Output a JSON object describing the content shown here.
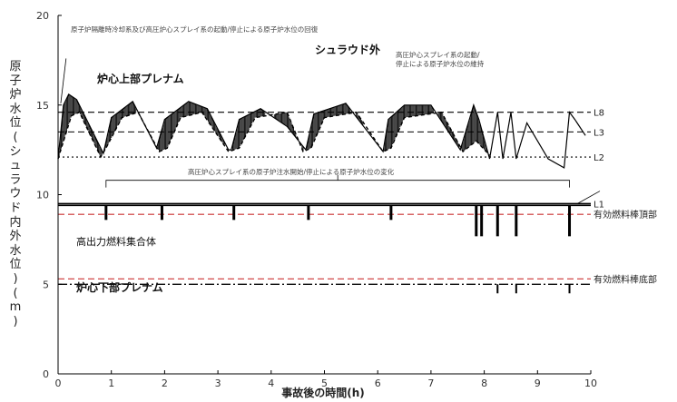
{
  "chart_data": {
    "type": "line",
    "xlabel": "事故後の時間(h)",
    "ylabel": "原子炉水位(シュラウド内外水位)(m)",
    "xlim": [
      0,
      10
    ],
    "ylim": [
      0,
      20
    ],
    "xticks": [
      0,
      1,
      2,
      3,
      4,
      5,
      6,
      7,
      8,
      9,
      10
    ],
    "yticks": [
      0,
      5,
      10,
      15,
      20
    ],
    "grid": false,
    "reference_lines": [
      {
        "label": "L8",
        "y": 14.6,
        "style": "dashed",
        "color": "#000000"
      },
      {
        "label": "L3",
        "y": 13.5,
        "style": "dashed",
        "color": "#000000"
      },
      {
        "label": "L2",
        "y": 12.1,
        "style": "dotted",
        "color": "#000000"
      },
      {
        "label": "L1",
        "y": 9.5,
        "style": "solid",
        "color": "#000000"
      },
      {
        "label": "有効燃料棒頂部",
        "y": 8.9,
        "style": "dashed",
        "color": "#cc3333"
      },
      {
        "label": "有効燃料棒底部",
        "y": 5.3,
        "style": "dashed",
        "color": "#cc3333"
      },
      {
        "label": "",
        "y": 5.0,
        "style": "dashdot",
        "color": "#000000"
      }
    ],
    "annotations": {
      "top_recovery": "原子炉隔離時冷却系及び高圧炉心スプレイ系の起動/停止による原子炉水位の回復",
      "shroud_outside": "シュラウド外",
      "hpcs_maintain": "高圧炉心スプレイ系の起動/\n停止による原子炉水位の維持",
      "upper_plenum": "炉心上部プレナム",
      "hpcs_change": "高圧炉心スプレイ系の原子炉注水開始/停止による原子炉水位の変化",
      "high_power_fuel": "高出力燃料集合体",
      "lower_plenum": "炉心下部プレナム"
    },
    "series": [
      {
        "name": "シュラウド外",
        "x": [
          0,
          0.1,
          0.2,
          0.35,
          0.7,
          0.85,
          1.0,
          1.4,
          1.85,
          2.0,
          2.45,
          2.8,
          3.2,
          3.25,
          3.4,
          3.8,
          4.3,
          4.65,
          4.8,
          5.4,
          6.1,
          6.2,
          6.5,
          7.0,
          7.55,
          7.8,
          7.9,
          8.1,
          8.25,
          8.35,
          8.5,
          8.6,
          8.8,
          9.2,
          9.5,
          9.6,
          9.7,
          9.9
        ],
        "y": [
          12,
          15.0,
          15.6,
          15.3,
          13.2,
          12.3,
          14.3,
          15.2,
          12.6,
          14.2,
          15.2,
          14.8,
          12.5,
          12.5,
          14.2,
          14.8,
          13.8,
          12.5,
          14.5,
          15.1,
          12.4,
          14.2,
          15.0,
          15.0,
          12.5,
          15.0,
          14.2,
          12.0,
          14.6,
          12.0,
          14.6,
          12.0,
          14.0,
          12.0,
          11.5,
          14.6,
          14.2,
          13.3
        ]
      },
      {
        "name": "炉心上部プレナム",
        "x": [
          0,
          0.25,
          0.4,
          0.8,
          0.9,
          1.2,
          1.5,
          1.9,
          2.05,
          2.3,
          2.7,
          3.2,
          3.4,
          3.7,
          4.3,
          4.6,
          4.75,
          5.0,
          5.6,
          6.1,
          6.25,
          6.5,
          7.2,
          7.6,
          7.85,
          8.1
        ],
        "y": [
          12,
          14.4,
          14.6,
          12.1,
          12.6,
          14.3,
          14.6,
          12.4,
          12.6,
          14.3,
          14.6,
          12.4,
          12.6,
          14.3,
          14.6,
          12.4,
          12.6,
          14.3,
          14.6,
          12.4,
          12.6,
          14.3,
          14.6,
          12.4,
          13.0,
          12.2
        ]
      },
      {
        "name": "高出力燃料集合体",
        "x": [
          0,
          10
        ],
        "y": [
          9.4,
          9.4
        ]
      },
      {
        "name": "炉心下部プレナム",
        "x": [
          0,
          10
        ],
        "y": [
          5.0,
          5.0
        ]
      }
    ]
  }
}
